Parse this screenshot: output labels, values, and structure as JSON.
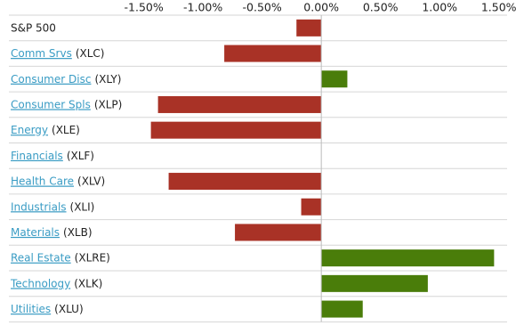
{
  "chart_data": {
    "type": "bar",
    "orientation": "horizontal",
    "categories": [
      "S&P 500",
      "Comm Srvs",
      "Consumer Disc",
      "Consumer Spls",
      "Energy",
      "Financials",
      "Health Care",
      "Industrials",
      "Materials",
      "Real Estate",
      "Technology",
      "Utilities"
    ],
    "tickers": [
      null,
      "(XLC)",
      "(XLY)",
      "(XLP)",
      "(XLE)",
      "(XLF)",
      "(XLV)",
      "(XLI)",
      "(XLB)",
      "(XLRE)",
      "(XLK)",
      "(XLU)"
    ],
    "values": [
      -0.21,
      -0.82,
      0.22,
      -1.38,
      -1.44,
      0,
      -1.29,
      -0.17,
      -0.73,
      1.46,
      0.9,
      0.35
    ],
    "positive_color": "#4a7d0a",
    "negative_color": "#a93226",
    "xlim": [
      -2.64,
      1.57
    ],
    "xticks": [
      {
        "value": -1.5,
        "label": "-1.50%"
      },
      {
        "value": -1,
        "label": "-1.00%"
      },
      {
        "value": -0.5,
        "label": "-0.50%"
      },
      {
        "value": 0,
        "label": "0.00%"
      },
      {
        "value": 0.5,
        "label": "0.50%"
      },
      {
        "value": 1,
        "label": "1.00%"
      },
      {
        "value": 1.5,
        "label": "1.50%"
      }
    ]
  }
}
